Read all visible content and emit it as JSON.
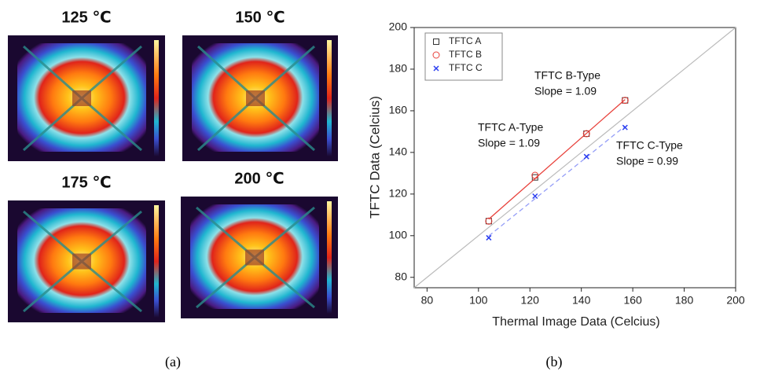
{
  "panel_a": {
    "images": [
      {
        "label": "125 ℃"
      },
      {
        "label": "150 ℃"
      },
      {
        "label": "175 ℃"
      },
      {
        "label": "200 ℃"
      }
    ],
    "caption": "(a)"
  },
  "chart_data": {
    "type": "scatter",
    "caption": "(b)",
    "x_label": "Thermal Image Data (Celcius)",
    "y_label": "TFTC Data (Celcius)",
    "xlim": [
      75,
      200
    ],
    "xticks": [
      80,
      100,
      120,
      140,
      160,
      180,
      200
    ],
    "ylim": [
      75,
      200
    ],
    "yticks": [
      80,
      100,
      120,
      140,
      160,
      180,
      200
    ],
    "legend": "upper left",
    "series": [
      {
        "name": "TFTC A",
        "color": "#333333",
        "marker": "square",
        "fit": false,
        "x": [
          104,
          122,
          142,
          157
        ],
        "values": [
          107,
          128,
          149,
          165
        ]
      },
      {
        "name": "TFTC B",
        "color": "#e8403a",
        "marker": "circle",
        "fit": true,
        "dash": false,
        "x": [
          104,
          122,
          142,
          157
        ],
        "values": [
          107,
          129,
          149,
          165
        ]
      },
      {
        "name": "TFTC C",
        "color": "#2b3ef0",
        "marker": "x",
        "fit": true,
        "dash": true,
        "x": [
          104,
          122,
          142,
          157
        ],
        "values": [
          99,
          119,
          138,
          152
        ]
      }
    ],
    "annotations": [
      {
        "lines": [
          "TFTC B-Type",
          "Slope = 1.09"
        ]
      },
      {
        "lines": [
          "TFTC A-Type",
          "Slope = 1.09"
        ]
      },
      {
        "lines": [
          "TFTC C-Type",
          "Slope = 0.99"
        ]
      }
    ]
  }
}
